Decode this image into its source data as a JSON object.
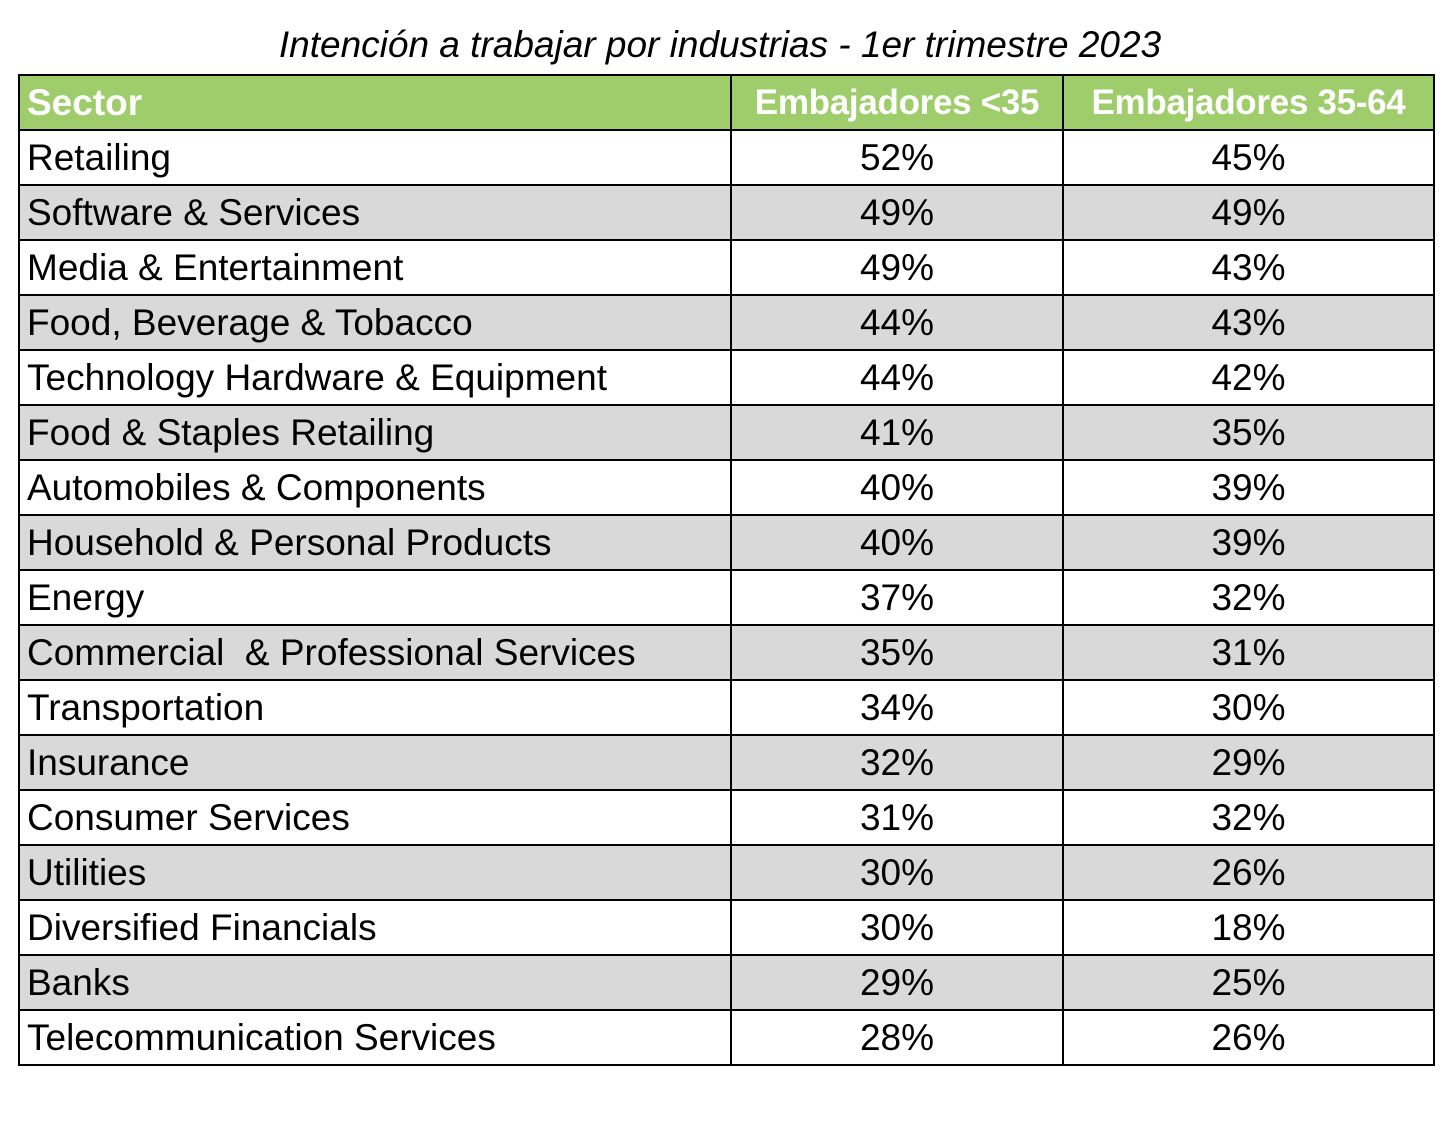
{
  "title": "Intención a trabajar por industrias - 1er trimestre 2023",
  "colors": {
    "header_bg": "#9fcd6b",
    "header_text": "#ffffff",
    "shaded_row": "#d9d9d9",
    "border": "#000000"
  },
  "table": {
    "headers": [
      "Sector",
      "Embajadores <35",
      "Embajadores 35-64"
    ],
    "rows": [
      [
        "Retailing",
        "52%",
        "45%"
      ],
      [
        "Software & Services",
        "49%",
        "49%"
      ],
      [
        "Media & Entertainment",
        "49%",
        "43%"
      ],
      [
        "Food, Beverage & Tobacco",
        "44%",
        "43%"
      ],
      [
        "Technology Hardware & Equipment",
        "44%",
        "42%"
      ],
      [
        "Food & Staples Retailing",
        "41%",
        "35%"
      ],
      [
        "Automobiles & Components",
        "40%",
        "39%"
      ],
      [
        "Household & Personal Products",
        "40%",
        "39%"
      ],
      [
        "Energy",
        "37%",
        "32%"
      ],
      [
        "Commercial  & Professional Services",
        "35%",
        "31%"
      ],
      [
        "Transportation",
        "34%",
        "30%"
      ],
      [
        "Insurance",
        "32%",
        "29%"
      ],
      [
        "Consumer Services",
        "31%",
        "32%"
      ],
      [
        "Utilities",
        "30%",
        "26%"
      ],
      [
        "Diversified Financials",
        "30%",
        "18%"
      ],
      [
        "Banks",
        "29%",
        "25%"
      ],
      [
        "Telecommunication Services",
        "28%",
        "26%"
      ]
    ]
  }
}
